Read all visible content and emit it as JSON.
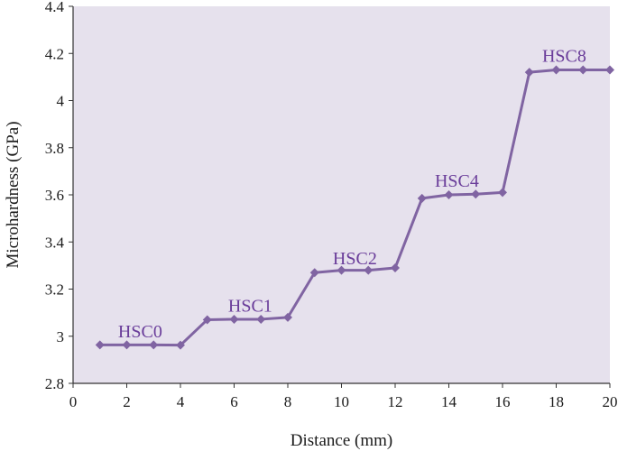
{
  "chart_data": {
    "type": "line",
    "xlabel": "Distance (mm)",
    "ylabel": "Microhardness  (GPa)",
    "xlim": [
      0,
      20
    ],
    "ylim": [
      2.8,
      4.4
    ],
    "x_ticks": [
      "0",
      "2",
      "4",
      "6",
      "8",
      "10",
      "12",
      "14",
      "16",
      "18",
      "20"
    ],
    "y_ticks": [
      "2.8",
      "3",
      "3.2",
      "3.4",
      "3.6",
      "3.8",
      "4",
      "4.2",
      "4.4"
    ],
    "grid": false,
    "plot_background": "#e6e1ed",
    "series": [
      {
        "color": "#8064a2",
        "marker": "diamond",
        "x": [
          1,
          2,
          3,
          4,
          5,
          6,
          7,
          8,
          9,
          10,
          11,
          12,
          13,
          14,
          15,
          16,
          17,
          18,
          19,
          20
        ],
        "y": [
          2.963,
          2.963,
          2.963,
          2.962,
          3.07,
          3.072,
          3.072,
          3.08,
          3.27,
          3.28,
          3.28,
          3.29,
          3.585,
          3.6,
          3.603,
          3.61,
          4.12,
          4.13,
          4.13,
          4.13
        ]
      }
    ],
    "annotations": [
      {
        "text": "HSC0",
        "x": 2.5,
        "y": 2.995
      },
      {
        "text": "HSC1",
        "x": 6.6,
        "y": 3.105
      },
      {
        "text": "HSC2",
        "x": 10.5,
        "y": 3.305
      },
      {
        "text": "HSC4",
        "x": 14.3,
        "y": 3.635
      },
      {
        "text": "HSC8",
        "x": 18.3,
        "y": 4.165
      }
    ]
  }
}
